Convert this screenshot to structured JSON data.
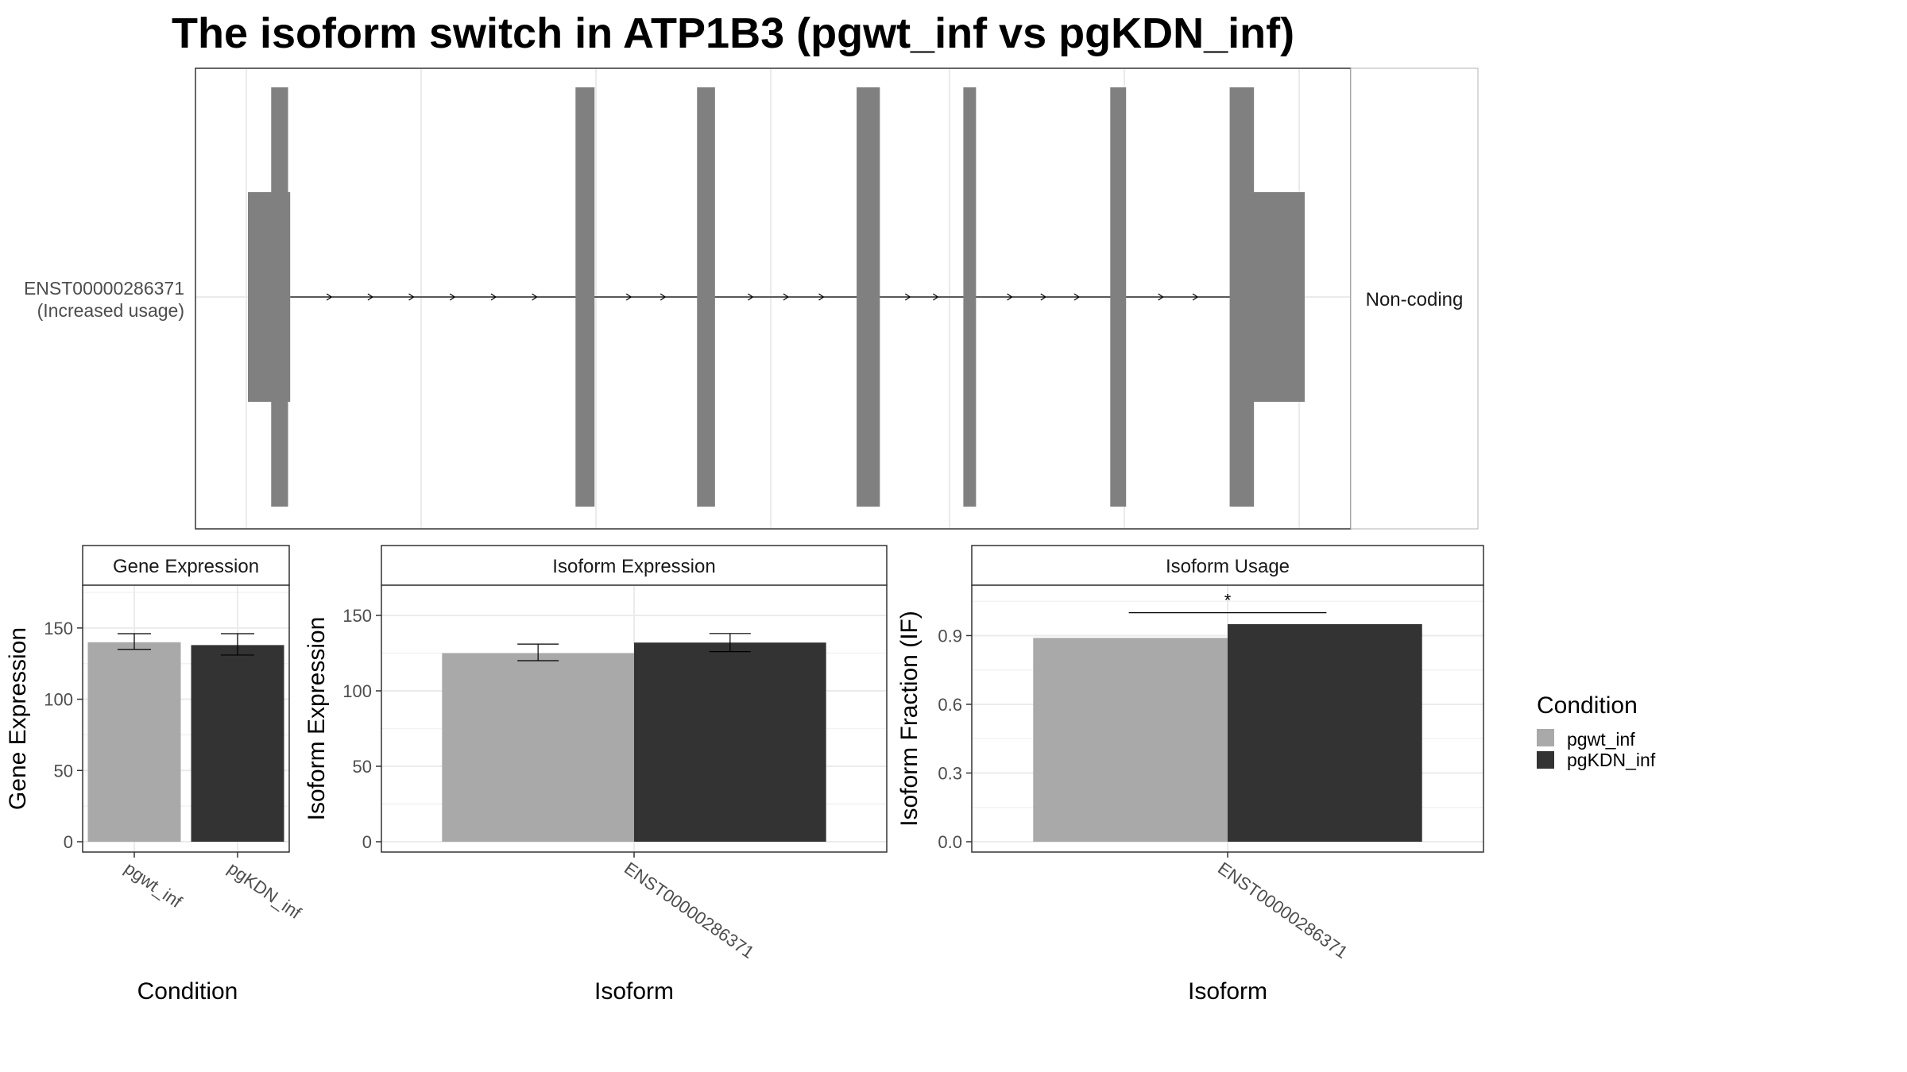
{
  "title": "The isoform switch in ATP1B3 (pgwt_inf vs pgKDN_inf)",
  "colors": {
    "pgwt_inf": "#a9a9a9",
    "pgKDN_inf": "#333333",
    "exon": "#808080",
    "grid": "#ebebeb",
    "border": "#333333"
  },
  "chart_data": [
    {
      "type": "isoform-structure",
      "isoform": "ENST00000286371",
      "row_label_line1": "ENST00000286371",
      "row_label_line2": "(Increased usage)",
      "coding_status": "Non-coding",
      "exons": [
        {
          "start": 0.0,
          "end": 0.04,
          "kind": "utr"
        },
        {
          "start": 0.022,
          "end": 0.038,
          "kind": "cds"
        },
        {
          "start": 0.31,
          "end": 0.328,
          "kind": "cds"
        },
        {
          "start": 0.425,
          "end": 0.442,
          "kind": "cds"
        },
        {
          "start": 0.576,
          "end": 0.598,
          "kind": "cds"
        },
        {
          "start": 0.677,
          "end": 0.689,
          "kind": "cds"
        },
        {
          "start": 0.816,
          "end": 0.831,
          "kind": "cds"
        },
        {
          "start": 0.929,
          "end": 0.952,
          "kind": "cds"
        },
        {
          "start": 0.95,
          "end": 1.0,
          "kind": "utr"
        }
      ]
    },
    {
      "type": "bar",
      "strip": "Gene Expression",
      "xlabel": "Condition",
      "ylabel": "Gene Expression",
      "ylim": [
        0,
        180
      ],
      "yticks": [
        0,
        50,
        100,
        150
      ],
      "categories": [
        "pgwt_inf",
        "pgKDN_inf"
      ],
      "values": [
        140,
        138
      ],
      "err_low": [
        135,
        131
      ],
      "err_high": [
        146,
        146
      ]
    },
    {
      "type": "bar",
      "strip": "Isoform Expression",
      "xlabel": "Isoform",
      "ylabel": "Isoform Expression",
      "ylim": [
        0,
        170
      ],
      "yticks": [
        0,
        50,
        100,
        150
      ],
      "categories": [
        "ENST00000286371"
      ],
      "series": [
        {
          "name": "pgwt_inf",
          "values": [
            125
          ],
          "err_low": [
            120
          ],
          "err_high": [
            131
          ]
        },
        {
          "name": "pgKDN_inf",
          "values": [
            132
          ],
          "err_low": [
            126
          ],
          "err_high": [
            138
          ]
        }
      ]
    },
    {
      "type": "bar",
      "strip": "Isoform Usage",
      "xlabel": "Isoform",
      "ylabel": "Isoform Fraction (IF)",
      "ylim": [
        0,
        1.12
      ],
      "yticks": [
        0.0,
        0.3,
        0.6,
        0.9
      ],
      "ytick_labels": [
        "0.0",
        "0.3",
        "0.6",
        "0.9"
      ],
      "categories": [
        "ENST00000286371"
      ],
      "series": [
        {
          "name": "pgwt_inf",
          "values": [
            0.89
          ]
        },
        {
          "name": "pgKDN_inf",
          "values": [
            0.95
          ]
        }
      ],
      "significance": {
        "label": "*",
        "y": 1.0
      }
    }
  ],
  "legend": {
    "title": "Condition",
    "entries": [
      "pgwt_inf",
      "pgKDN_inf"
    ]
  }
}
